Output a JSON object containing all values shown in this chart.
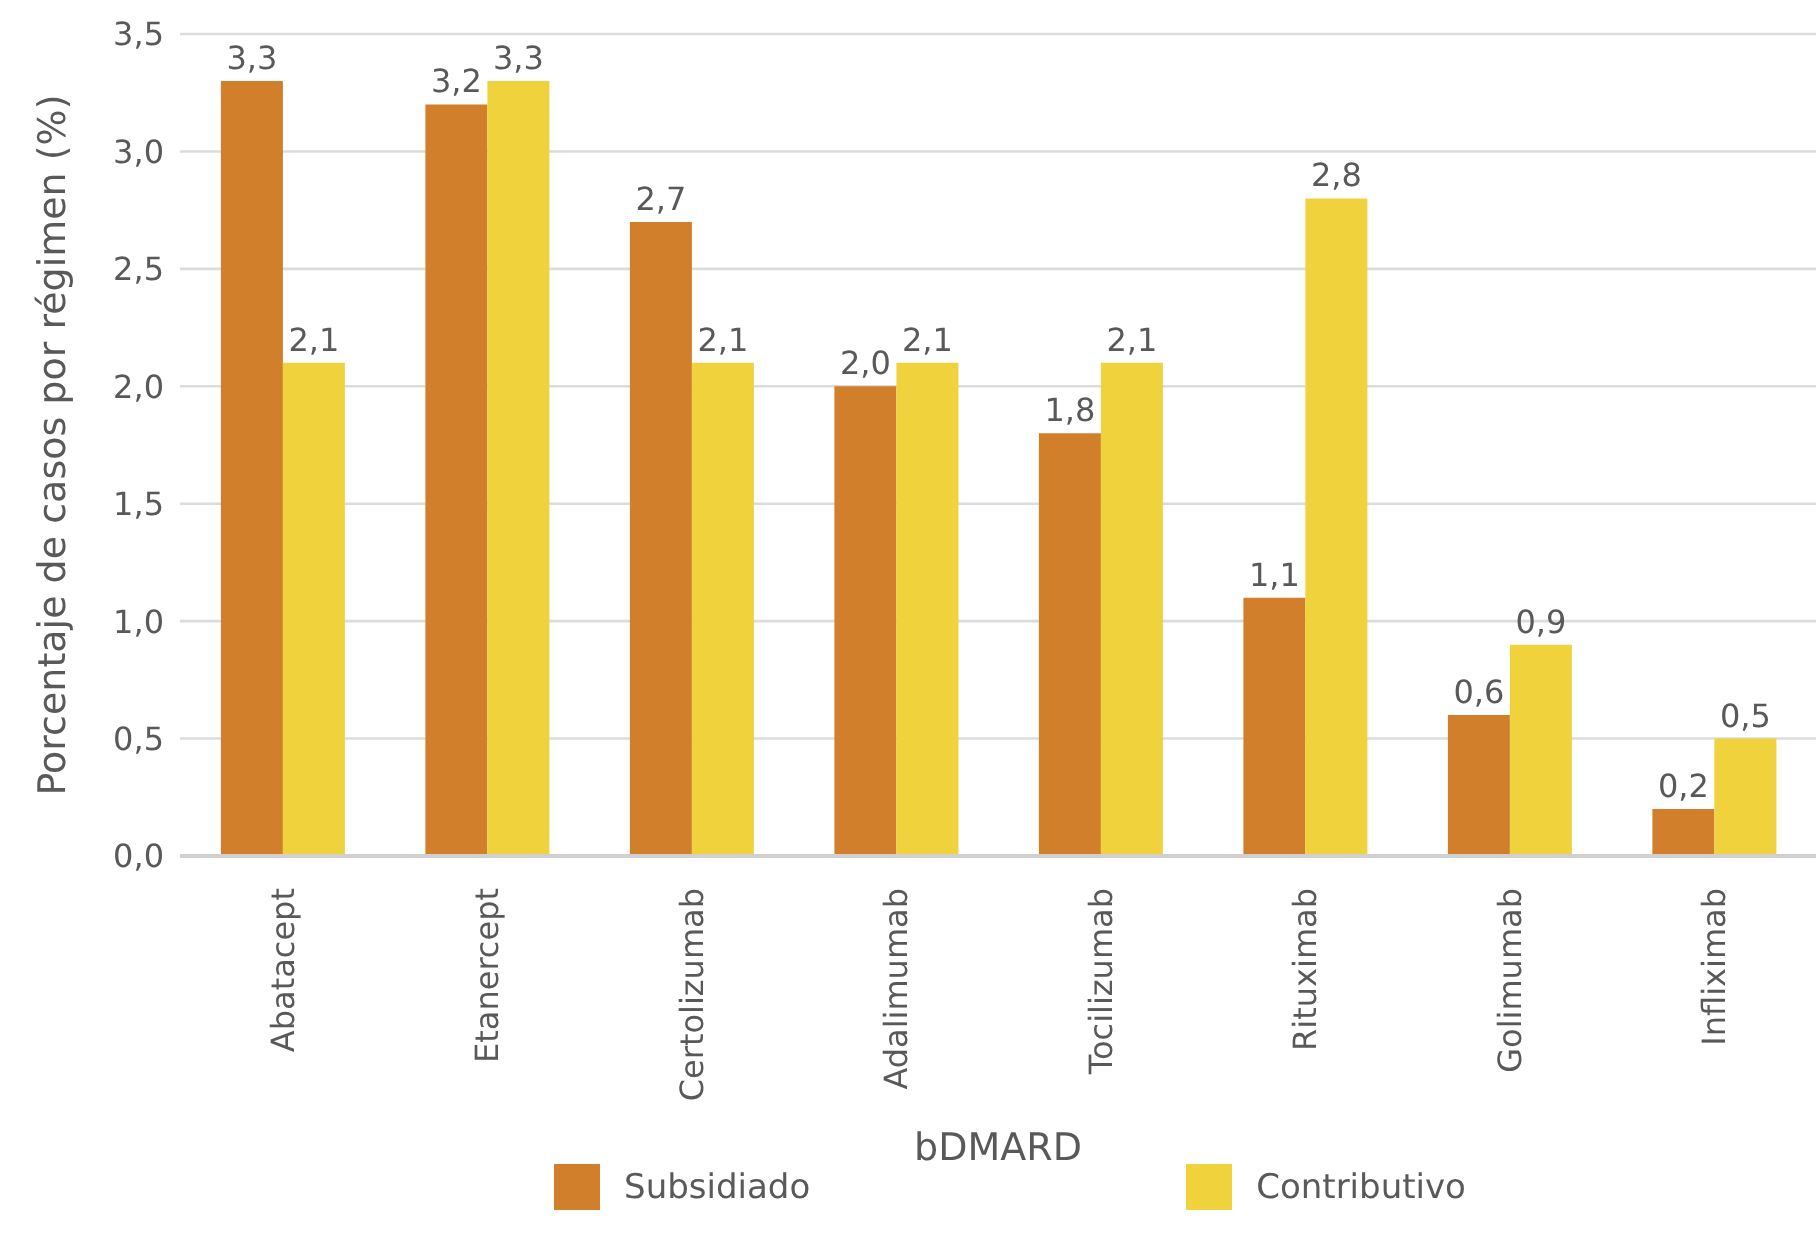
{
  "chart_data": {
    "type": "bar",
    "xlabel": "bDMARD",
    "ylabel": "Porcentaje de casos por régimen (%)",
    "categories": [
      "Abatacept",
      "Etanercept",
      "Certolizumab",
      "Adalimumab",
      "Tocilizumab",
      "Rituximab",
      "Golimumab",
      "Infliximab"
    ],
    "series": [
      {
        "name": "Subsidiado",
        "color": "#d17f2a",
        "values": [
          3.3,
          3.2,
          2.7,
          2.0,
          1.8,
          1.1,
          0.6,
          0.2
        ],
        "value_labels": [
          "3,3",
          "3,2",
          "2,7",
          "2,0",
          "1,8",
          "1,1",
          "0,6",
          "0,2"
        ]
      },
      {
        "name": "Contributivo",
        "color": "#f0d23c",
        "values": [
          2.1,
          3.3,
          2.1,
          2.1,
          2.1,
          2.8,
          0.9,
          0.5
        ],
        "value_labels": [
          "2,1",
          "3,3",
          "2,1",
          "2,1",
          "2,1",
          "2,8",
          "0,9",
          "0,5"
        ]
      }
    ],
    "ylim": [
      0,
      3.5
    ],
    "yticks": [
      {
        "value": 0,
        "label": "0,0"
      },
      {
        "value": 0.5,
        "label": "0,5"
      },
      {
        "value": 1,
        "label": "1,0"
      },
      {
        "value": 1.5,
        "label": "1,5"
      },
      {
        "value": 2,
        "label": "2,0"
      },
      {
        "value": 2.5,
        "label": "2,5"
      },
      {
        "value": 3,
        "label": "3,0"
      },
      {
        "value": 3.5,
        "label": "3,5"
      }
    ],
    "grid": "y",
    "legend": "bottom"
  }
}
